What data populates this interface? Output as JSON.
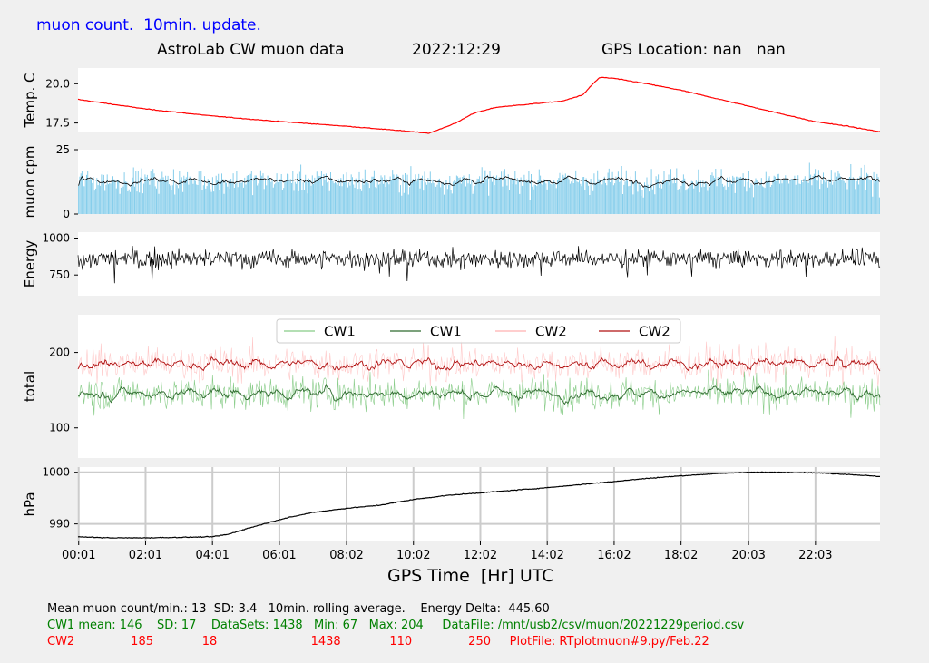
{
  "header": {
    "top_label": "muon count.  10min. update.",
    "title_left": "AstroLab CW muon data",
    "title_date": "2022:12:29",
    "title_gps": "GPS Location: nan   nan",
    "colors": {
      "top_label": "#0000ff",
      "title": "#000000"
    }
  },
  "chart_data": [
    {
      "id": "temp",
      "type": "line",
      "ylabel": "Temp. C",
      "yticks": [
        17.5,
        20.0
      ],
      "ylim": [
        16.9,
        21.0
      ],
      "grid": false,
      "series": [
        {
          "color": "#ff0000",
          "x": [
            0.0,
            2.0,
            4.0,
            6.0,
            8.0,
            10.0,
            10.5,
            11.3,
            11.8,
            12.5,
            13.5,
            14.5,
            15.1,
            15.4,
            15.6,
            16.0,
            17.0,
            18.0,
            19.0,
            20.0,
            21.0,
            22.0,
            23.0,
            23.95
          ],
          "y": [
            19.0,
            18.4,
            17.95,
            17.6,
            17.3,
            16.95,
            16.85,
            17.5,
            18.1,
            18.5,
            18.7,
            18.9,
            19.3,
            20.0,
            20.4,
            20.35,
            20.0,
            19.6,
            19.1,
            18.6,
            18.1,
            17.6,
            17.3,
            16.95
          ]
        }
      ]
    },
    {
      "id": "muon",
      "type": "bar",
      "ylabel": "muon cpm",
      "yticks": [
        0,
        25
      ],
      "ylim": [
        0,
        25
      ],
      "grid": false,
      "bar_color": "#87ceeb",
      "avg_color": "#000000",
      "mean": 13,
      "sd": 3.4,
      "bar_count": 1438,
      "avg_level": 13.0
    },
    {
      "id": "energy",
      "type": "line",
      "ylabel": "Energy",
      "yticks": [
        750,
        1000
      ],
      "ylim": [
        610,
        1040
      ],
      "grid": false,
      "color": "#000000",
      "level": 860,
      "points": 1438
    },
    {
      "id": "total",
      "type": "line",
      "ylabel": "total",
      "yticks": [
        100,
        200
      ],
      "ylim": [
        60,
        250
      ],
      "grid": false,
      "legend": {
        "placement": "top-center",
        "entries": [
          "CW1",
          "CW1",
          "CW2",
          "CW2"
        ]
      },
      "series": [
        {
          "name": "CW1",
          "color": "#88cc88",
          "mean": 146,
          "sd": 17,
          "min": 67,
          "max": 204,
          "style": "raw"
        },
        {
          "name": "CW1",
          "color": "#2e6b2e",
          "mean": 146,
          "style": "avg"
        },
        {
          "name": "CW2",
          "color": "#ffb0b0",
          "mean": 185,
          "sd": 18,
          "min": 110,
          "max": 250,
          "style": "raw"
        },
        {
          "name": "CW2",
          "color": "#b01010",
          "mean": 185,
          "style": "avg"
        }
      ]
    },
    {
      "id": "pressure",
      "type": "line",
      "ylabel": "hPa",
      "yticks": [
        990,
        1000
      ],
      "ylim": [
        986.6,
        1001
      ],
      "grid": true,
      "xlabel": "GPS Time  [Hr] UTC",
      "xticks": [
        "00:01",
        "02:01",
        "04:01",
        "06:01",
        "08:02",
        "10:02",
        "12:02",
        "14:02",
        "16:02",
        "18:02",
        "20:03",
        "22:03"
      ],
      "xtick_hours": [
        0.02,
        2.02,
        4.02,
        6.02,
        8.03,
        10.03,
        12.03,
        14.03,
        16.03,
        18.03,
        20.05,
        22.05
      ],
      "xlim": [
        0,
        23.98
      ],
      "series": [
        {
          "color": "#000000",
          "x": [
            0.0,
            1.0,
            2.0,
            3.0,
            4.0,
            4.5,
            5.0,
            6.0,
            7.0,
            8.0,
            9.0,
            10.0,
            11.0,
            12.0,
            13.0,
            14.0,
            15.0,
            16.0,
            17.0,
            18.0,
            19.0,
            20.0,
            21.0,
            22.0,
            23.0,
            23.95
          ],
          "y": [
            987.5,
            987.3,
            987.3,
            987.4,
            987.5,
            988.0,
            989.0,
            990.8,
            992.2,
            993.0,
            993.6,
            994.7,
            995.5,
            996.0,
            996.5,
            997.0,
            997.6,
            998.2,
            998.8,
            999.3,
            999.7,
            1000.0,
            1000.0,
            999.9,
            999.6,
            999.2
          ]
        }
      ]
    }
  ],
  "footer": {
    "line1": "Mean muon count/min.: 13  SD: 3.4   10min. rolling average.    Energy Delta:  445.60",
    "line2": "CW1 mean: 146    SD: 17    DataSets: 1438   Min: 67   Max: 204     DataFile: /mnt/usb2/csv/muon/20221229period.csv",
    "line3": "CW2               185             18                         1438             110               250     PlotFile: RTplotmuon#9.py/Feb.22",
    "colors": {
      "line1": "#000000",
      "line2": "#008000",
      "line3": "#ff0000"
    }
  }
}
